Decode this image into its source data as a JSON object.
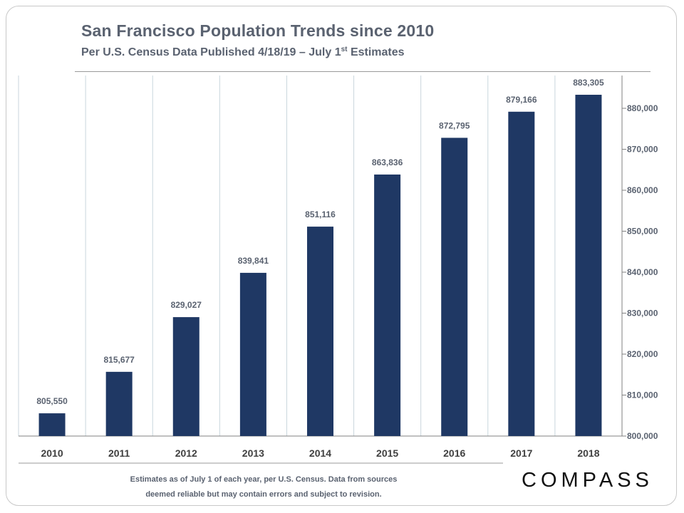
{
  "header": {
    "title": "San Francisco Population Trends since 2010",
    "subtitle_main": "Per U.S. Census Data Published  4/18/19 – July 1",
    "subtitle_sup": "st",
    "subtitle_end": " Estimates"
  },
  "footer": {
    "note_line1": "Estimates as of July 1 of each year, per U.S. Census. Data from sources",
    "note_line2": "deemed reliable but may contain errors and subject to revision.",
    "logo": "COMPASS"
  },
  "colors": {
    "bar": "#1f3864",
    "text": "#5a6270",
    "grid": "#c9d6dd",
    "axis": "#808080"
  },
  "chart_data": {
    "type": "bar",
    "title": "San Francisco Population Trends since 2010",
    "xlabel": "",
    "ylabel": "",
    "categories": [
      "2010",
      "2011",
      "2012",
      "2013",
      "2014",
      "2015",
      "2016",
      "2017",
      "2018"
    ],
    "values": [
      805550,
      815677,
      829027,
      839841,
      851116,
      863836,
      872795,
      879166,
      883305
    ],
    "value_labels": [
      "805,550",
      "815,677",
      "829,027",
      "839,841",
      "851,116",
      "863,836",
      "872,795",
      "879,166",
      "883,305"
    ],
    "ylim": [
      800000,
      888000
    ],
    "yticks": [
      800000,
      810000,
      820000,
      830000,
      840000,
      850000,
      860000,
      870000,
      880000
    ],
    "ytick_labels": [
      "800,000",
      "810,000",
      "820,000",
      "830,000",
      "840,000",
      "850,000",
      "860,000",
      "870,000",
      "880,000"
    ],
    "y_axis_side": "right",
    "grid": "vertical separators between categories"
  }
}
